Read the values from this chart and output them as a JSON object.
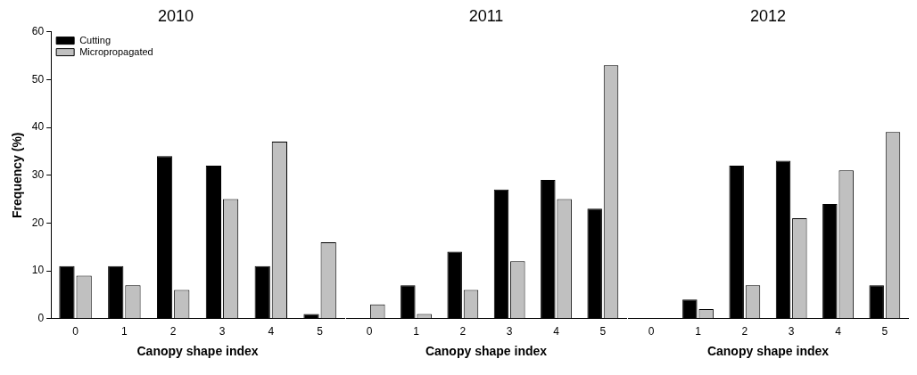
{
  "chart_data": [
    {
      "type": "bar",
      "title": "2010",
      "xlabel": "Canopy shape index",
      "ylabel": "Frequency (%)",
      "categories": [
        "0",
        "1",
        "2",
        "3",
        "4",
        "5"
      ],
      "ylim": [
        0,
        60
      ],
      "yticks": [
        0,
        10,
        20,
        30,
        40,
        50,
        60
      ],
      "legend": "top left",
      "series": [
        {
          "name": "Cutting",
          "color": "#000000",
          "values": [
            11,
            11,
            34,
            32,
            11,
            1
          ]
        },
        {
          "name": "Micropropagated",
          "color": "#c0c0c0",
          "values": [
            9,
            7,
            6,
            25,
            37,
            16
          ]
        }
      ]
    },
    {
      "type": "bar",
      "title": "2011",
      "xlabel": "Canopy shape index",
      "categories": [
        "0",
        "1",
        "2",
        "3",
        "4",
        "5"
      ],
      "ylim": [
        0,
        60
      ],
      "yticks": [
        0,
        10,
        20,
        30,
        40,
        50,
        60
      ],
      "tick_labels": "x",
      "series": [
        {
          "color": "#000000",
          "values": [
            0,
            7,
            14,
            27,
            29,
            23
          ]
        },
        {
          "color": "#c0c0c0",
          "values": [
            3,
            1,
            6,
            12,
            25,
            53
          ]
        }
      ]
    },
    {
      "type": "bar",
      "title": "2012",
      "xlabel": "Canopy shape index",
      "categories": [
        "0",
        "1",
        "2",
        "3",
        "4",
        "5"
      ],
      "ylim": [
        0,
        60
      ],
      "yticks": [
        0,
        10,
        20,
        30,
        40,
        50,
        60
      ],
      "tick_labels": "x",
      "series": [
        {
          "color": "#000000",
          "values": [
            0,
            4,
            32,
            33,
            24,
            7
          ]
        },
        {
          "color": "#c0c0c0",
          "values": [
            0,
            2,
            7,
            21,
            31,
            39
          ]
        }
      ]
    }
  ]
}
